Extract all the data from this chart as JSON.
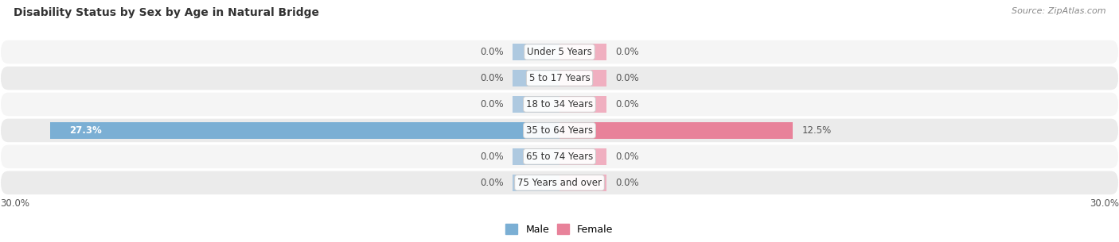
{
  "title": "Disability Status by Sex by Age in Natural Bridge",
  "source": "Source: ZipAtlas.com",
  "categories": [
    "Under 5 Years",
    "5 to 17 Years",
    "18 to 34 Years",
    "35 to 64 Years",
    "65 to 74 Years",
    "75 Years and over"
  ],
  "male_values": [
    0.0,
    0.0,
    0.0,
    27.3,
    0.0,
    0.0
  ],
  "female_values": [
    0.0,
    0.0,
    0.0,
    12.5,
    0.0,
    0.0
  ],
  "male_color": "#7bafd4",
  "female_color": "#e8829a",
  "male_stub_color": "#aec9e0",
  "female_stub_color": "#f0afc0",
  "row_bg_color_odd": "#f5f5f5",
  "row_bg_color_even": "#ebebeb",
  "xlim": 30.0,
  "stub_size": 2.5,
  "legend_male": "Male",
  "legend_female": "Female",
  "title_fontsize": 10,
  "source_fontsize": 8,
  "label_fontsize": 8.5,
  "category_fontsize": 8.5
}
